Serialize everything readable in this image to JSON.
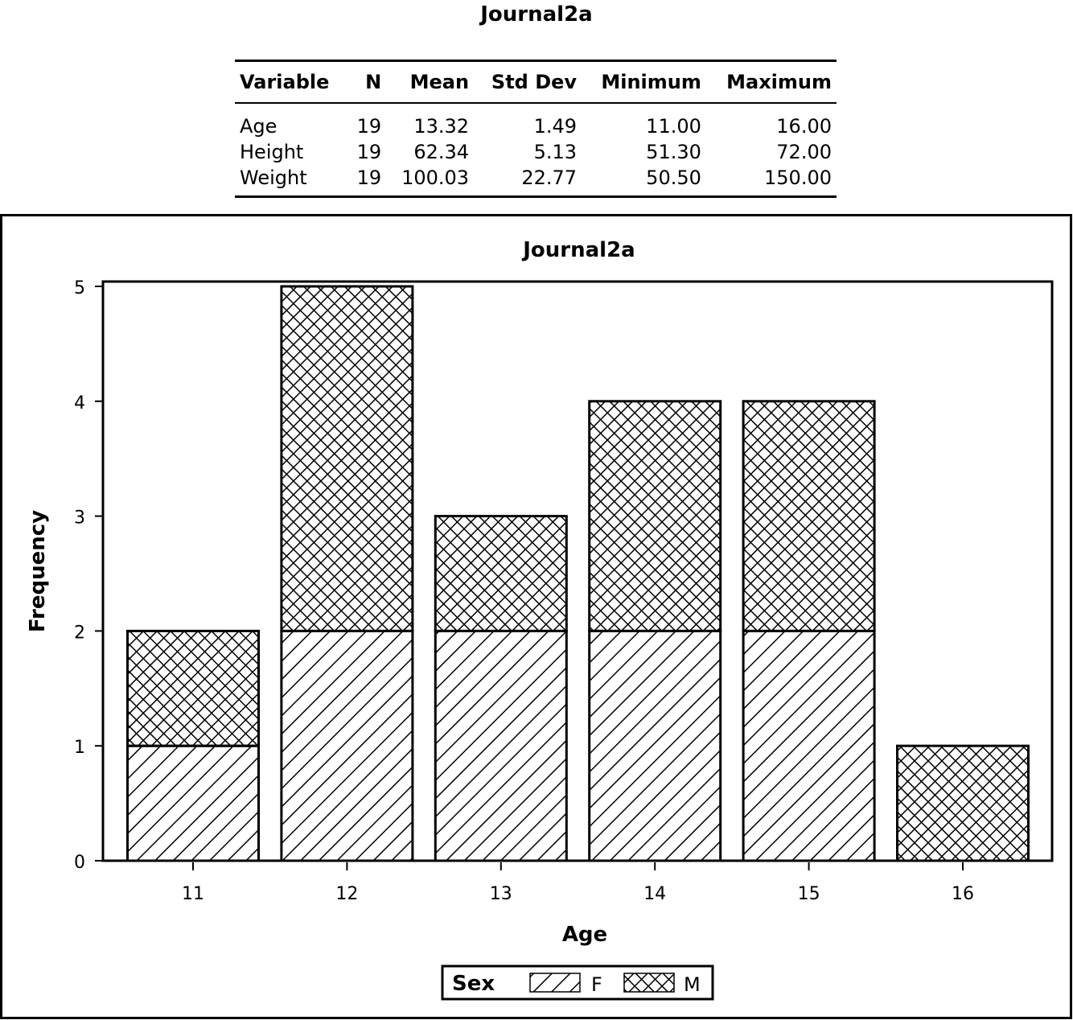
{
  "table": {
    "title": "Journal2a",
    "columns": [
      "Variable",
      "N",
      "Mean",
      "Std Dev",
      "Minimum",
      "Maximum"
    ],
    "rows": [
      [
        "Age",
        "19",
        "13.32",
        "1.49",
        "11.00",
        "16.00"
      ],
      [
        "Height",
        "19",
        "62.34",
        "5.13",
        "51.30",
        "72.00"
      ],
      [
        "Weight",
        "19",
        "100.03",
        "22.77",
        "50.50",
        "150.00"
      ]
    ]
  },
  "chart_data": {
    "type": "bar",
    "stacked": true,
    "title": "Journal2a",
    "xlabel": "Age",
    "ylabel": "Frequency",
    "categories": [
      "11",
      "12",
      "13",
      "14",
      "15",
      "16"
    ],
    "series": [
      {
        "name": "F",
        "values": [
          1,
          2,
          2,
          2,
          2,
          0
        ],
        "pattern": "diagonal-lines"
      },
      {
        "name": "M",
        "values": [
          1,
          3,
          1,
          2,
          2,
          1
        ],
        "pattern": "crosshatch"
      }
    ],
    "ylim": [
      0,
      5
    ],
    "yticks": [
      "0",
      "1",
      "2",
      "3",
      "4",
      "5"
    ],
    "grid": false,
    "legend": {
      "title": "Sex",
      "position": "bottom"
    }
  }
}
